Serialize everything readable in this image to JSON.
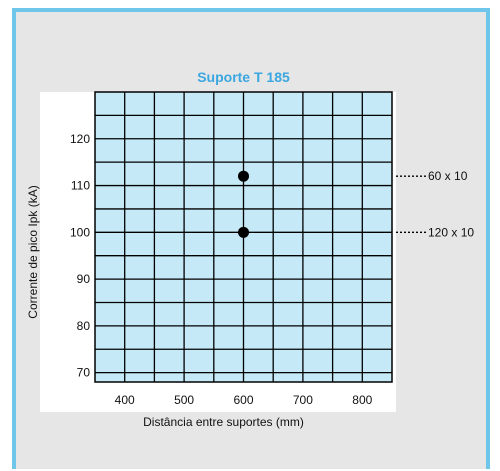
{
  "chart_data": {
    "type": "scatter",
    "title": "Suporte T 185",
    "xlabel": "Distância entre suportes (mm)",
    "ylabel": "Corrente de pico Ipk (kA)",
    "x_ticks": [
      400,
      500,
      600,
      700,
      800
    ],
    "y_ticks": [
      70,
      80,
      90,
      100,
      110,
      120
    ],
    "xlim": [
      350,
      850
    ],
    "ylim": [
      68,
      130
    ],
    "grid": true,
    "plot_background": "#c6e9f7",
    "marker_color": "#000000",
    "points": [
      {
        "x": 600,
        "y": 112,
        "label": "60 x 10"
      },
      {
        "x": 600,
        "y": 100,
        "label": "120 x 10"
      }
    ]
  }
}
